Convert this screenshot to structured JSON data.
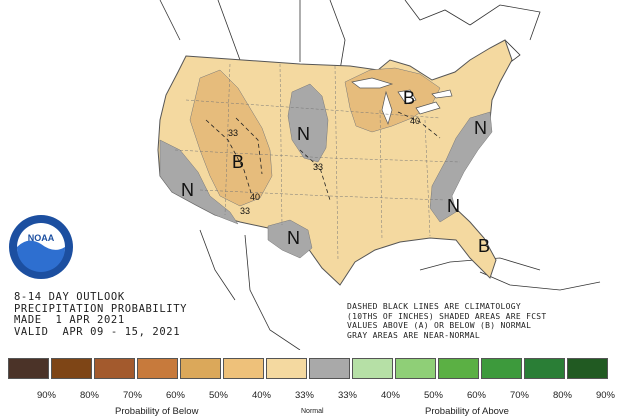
{
  "map": {
    "title_lines": [
      "8-14 DAY OUTLOOK",
      "PRECIPITATION PROBABILITY",
      "MADE  1 APR 2021",
      "VALID  APR 09 - 15, 2021"
    ],
    "note_lines": [
      "DASHED BLACK LINES ARE CLIMATOLOGY",
      "(10THS OF INCHES) SHADED AREAS ARE FCST",
      "VALUES ABOVE (A) OR BELOW (B) NORMAL",
      "GRAY AREAS ARE NEAR-NORMAL"
    ],
    "region_labels": {
      "below_west": "B",
      "below_greatlakes": "B",
      "below_florida": "B",
      "normal_california": "N",
      "normal_plains": "N",
      "normal_texas": "N",
      "normal_southeast": "N",
      "normal_northeast": "N"
    },
    "contour_labels": {
      "west_40": "40",
      "west_33": "33",
      "plains_33": "33",
      "greatlakes_40": "40",
      "idaho_33": "33"
    },
    "logo_text": "NOAA"
  },
  "legend": {
    "labels": [
      "90%",
      "80%",
      "70%",
      "60%",
      "50%",
      "40%",
      "33%",
      "33%",
      "40%",
      "50%",
      "60%",
      "70%",
      "80%",
      "90%"
    ],
    "colors": [
      "#4b3328",
      "#7e4516",
      "#a35a2d",
      "#c77a3c",
      "#dba85a",
      "#eec17a",
      "#f4d9a0",
      "#a9a9a9",
      "#b6e0a6",
      "#8fcf77",
      "#5bb044",
      "#3d9a3c",
      "#2a7e36",
      "#215a22"
    ],
    "caption_below": "Probability of Below",
    "caption_normal": "Normal",
    "caption_above": "Probability of Above"
  },
  "colors": {
    "below_33": "#f4d9a0",
    "below_40": "#e6bc7c",
    "normal": "#a8a8a8",
    "ocean": "#ffffff"
  }
}
